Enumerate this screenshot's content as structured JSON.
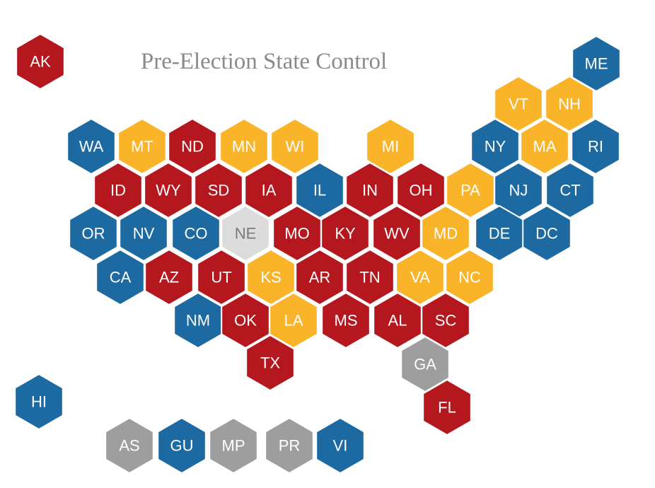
{
  "title": "Pre-Election State Control",
  "hexes": [
    {
      "label": "AK",
      "color": "#b5171f"
    },
    {
      "label": "ME",
      "color": "#1c6aa1"
    },
    {
      "label": "VT",
      "color": "#f9b42a"
    },
    {
      "label": "NH",
      "color": "#f9b42a"
    },
    {
      "label": "WA",
      "color": "#1c6aa1"
    },
    {
      "label": "MT",
      "color": "#f9b42a"
    },
    {
      "label": "ND",
      "color": "#b5171f"
    },
    {
      "label": "MN",
      "color": "#f9b42a"
    },
    {
      "label": "WI",
      "color": "#f9b42a"
    },
    {
      "label": "MI",
      "color": "#f9b42a"
    },
    {
      "label": "NY",
      "color": "#1c6aa1"
    },
    {
      "label": "MA",
      "color": "#f9b42a"
    },
    {
      "label": "RI",
      "color": "#1c6aa1"
    },
    {
      "label": "ID",
      "color": "#b5171f"
    },
    {
      "label": "WY",
      "color": "#b5171f"
    },
    {
      "label": "SD",
      "color": "#b5171f"
    },
    {
      "label": "IA",
      "color": "#b5171f"
    },
    {
      "label": "IL",
      "color": "#1c6aa1"
    },
    {
      "label": "IN",
      "color": "#b5171f"
    },
    {
      "label": "OH",
      "color": "#b5171f"
    },
    {
      "label": "PA",
      "color": "#f9b42a"
    },
    {
      "label": "NJ",
      "color": "#1c6aa1"
    },
    {
      "label": "CT",
      "color": "#1c6aa1"
    },
    {
      "label": "OR",
      "color": "#1c6aa1"
    },
    {
      "label": "NV",
      "color": "#1c6aa1"
    },
    {
      "label": "CO",
      "color": "#1c6aa1"
    },
    {
      "label": "NE",
      "color": "#dcdcdc"
    },
    {
      "label": "MO",
      "color": "#b5171f"
    },
    {
      "label": "KY",
      "color": "#b5171f"
    },
    {
      "label": "WV",
      "color": "#b5171f"
    },
    {
      "label": "MD",
      "color": "#f9b42a"
    },
    {
      "label": "DE",
      "color": "#1c6aa1"
    },
    {
      "label": "DC",
      "color": "#1c6aa1"
    },
    {
      "label": "CA",
      "color": "#1c6aa1"
    },
    {
      "label": "AZ",
      "color": "#b5171f"
    },
    {
      "label": "UT",
      "color": "#b5171f"
    },
    {
      "label": "KS",
      "color": "#f9b42a"
    },
    {
      "label": "AR",
      "color": "#b5171f"
    },
    {
      "label": "TN",
      "color": "#b5171f"
    },
    {
      "label": "VA",
      "color": "#f9b42a"
    },
    {
      "label": "NC",
      "color": "#f9b42a"
    },
    {
      "label": "NM",
      "color": "#1c6aa1"
    },
    {
      "label": "OK",
      "color": "#b5171f"
    },
    {
      "label": "LA",
      "color": "#f9b42a"
    },
    {
      "label": "MS",
      "color": "#b5171f"
    },
    {
      "label": "AL",
      "color": "#b5171f"
    },
    {
      "label": "SC",
      "color": "#b5171f"
    },
    {
      "label": "TX",
      "color": "#b5171f"
    },
    {
      "label": "GA",
      "color": "#9e9e9e"
    },
    {
      "label": "FL",
      "color": "#b5171f"
    },
    {
      "label": "HI",
      "color": "#1c6aa1"
    },
    {
      "label": "AS",
      "color": "#9e9e9e"
    },
    {
      "label": "GU",
      "color": "#1c6aa1"
    },
    {
      "label": "MP",
      "color": "#9e9e9e"
    },
    {
      "label": "PR",
      "color": "#9e9e9e"
    },
    {
      "label": "VI",
      "color": "#1c6aa1"
    }
  ]
}
